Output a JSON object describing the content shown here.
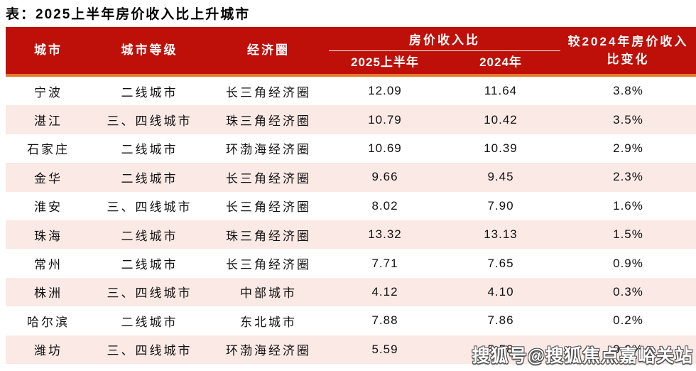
{
  "title": "表：2025上半年房价收入比上升城市",
  "watermark": "搜狐号@搜狐焦点嘉峪关站",
  "colors": {
    "header_bg": "#BE1008",
    "accent_orange": "#E6792F",
    "row_alt_pink": "#FBE9E5",
    "header_text": "#FFFFFF",
    "body_text": "#111111"
  },
  "table": {
    "header": {
      "city": "城市",
      "tier": "城市等级",
      "region": "经济圈",
      "ratio_group": "房价收入比",
      "ratio_2025": "2025上半年",
      "ratio_2024": "2024年",
      "change_line1": "较2024年房价收入",
      "change_line2": "比变化"
    },
    "rows": [
      {
        "city": "宁波",
        "tier": "二线城市",
        "region": "长三角经济圈",
        "h2025": "12.09",
        "y2024": "11.64",
        "change": "3.8%"
      },
      {
        "city": "湛江",
        "tier": "三、四线城市",
        "region": "珠三角经济圈",
        "h2025": "10.79",
        "y2024": "10.42",
        "change": "3.5%"
      },
      {
        "city": "石家庄",
        "tier": "二线城市",
        "region": "环渤海经济圈",
        "h2025": "10.69",
        "y2024": "10.39",
        "change": "2.9%"
      },
      {
        "city": "金华",
        "tier": "二线城市",
        "region": "长三角经济圈",
        "h2025": "9.66",
        "y2024": "9.45",
        "change": "2.3%"
      },
      {
        "city": "淮安",
        "tier": "三、四线城市",
        "region": "长三角经济圈",
        "h2025": "8.02",
        "y2024": "7.90",
        "change": "1.6%"
      },
      {
        "city": "珠海",
        "tier": "二线城市",
        "region": "珠三角经济圈",
        "h2025": "13.32",
        "y2024": "13.13",
        "change": "1.5%"
      },
      {
        "city": "常州",
        "tier": "二线城市",
        "region": "长三角经济圈",
        "h2025": "7.71",
        "y2024": "7.65",
        "change": "0.9%"
      },
      {
        "city": "株洲",
        "tier": "三、四线城市",
        "region": "中部城市",
        "h2025": "4.12",
        "y2024": "4.10",
        "change": "0.3%"
      },
      {
        "city": "哈尔滨",
        "tier": "二线城市",
        "region": "东北城市",
        "h2025": "7.88",
        "y2024": "7.86",
        "change": "0.2%"
      },
      {
        "city": "潍坊",
        "tier": "三、四线城市",
        "region": "环渤海经济圈",
        "h2025": "5.59",
        "y2024": "5.58",
        "change": "0.2%"
      }
    ]
  },
  "chart_data": {
    "type": "table",
    "title": "表：2025上半年房价收入比上升城市",
    "columns": [
      "城市",
      "城市等级",
      "经济圈",
      "房价收入比 2025上半年",
      "房价收入比 2024年",
      "较2024年房价收入比变化"
    ],
    "rows": [
      [
        "宁波",
        "二线城市",
        "长三角经济圈",
        12.09,
        11.64,
        "3.8%"
      ],
      [
        "湛江",
        "三、四线城市",
        "珠三角经济圈",
        10.79,
        10.42,
        "3.5%"
      ],
      [
        "石家庄",
        "二线城市",
        "环渤海经济圈",
        10.69,
        10.39,
        "2.9%"
      ],
      [
        "金华",
        "二线城市",
        "长三角经济圈",
        9.66,
        9.45,
        "2.3%"
      ],
      [
        "淮安",
        "三、四线城市",
        "长三角经济圈",
        8.02,
        7.9,
        "1.6%"
      ],
      [
        "珠海",
        "二线城市",
        "珠三角经济圈",
        13.32,
        13.13,
        "1.5%"
      ],
      [
        "常州",
        "二线城市",
        "长三角经济圈",
        7.71,
        7.65,
        "0.9%"
      ],
      [
        "株洲",
        "三、四线城市",
        "中部城市",
        4.12,
        4.1,
        "0.3%"
      ],
      [
        "哈尔滨",
        "二线城市",
        "东北城市",
        7.88,
        7.86,
        "0.2%"
      ],
      [
        "潍坊",
        "三、四线城市",
        "环渤海经济圈",
        5.59,
        5.58,
        "0.2%"
      ]
    ]
  }
}
